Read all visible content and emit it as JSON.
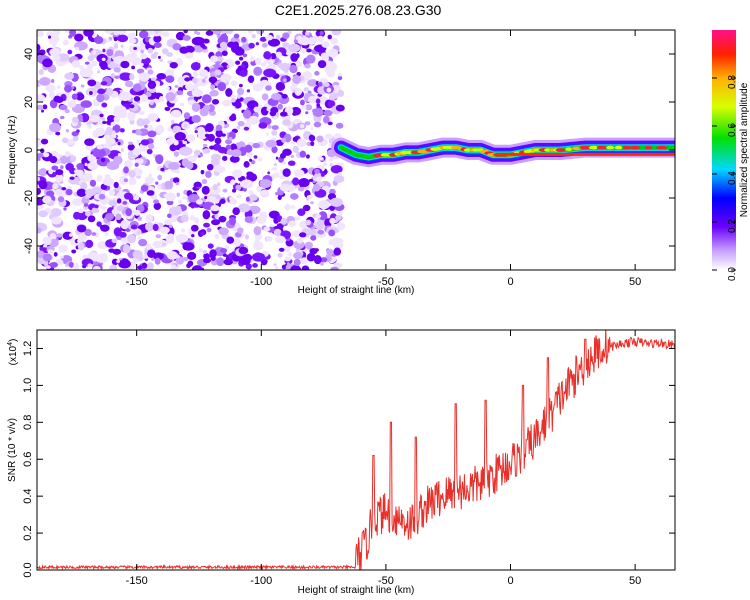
{
  "title": "C2E1.2025.276.08.23.G30",
  "chart_data": [
    {
      "type": "heatmap",
      "name": "spectrogram",
      "xlabel": "Height of straight line (km)",
      "ylabel": "Frequency (Hz)",
      "xlim": [
        -190,
        66
      ],
      "ylim": [
        -50,
        50
      ],
      "xticks": [
        -150,
        -100,
        -50,
        0,
        50
      ],
      "yticks": [
        -40,
        -20,
        0,
        20,
        40
      ],
      "noise_region_x": [
        -190,
        -68
      ],
      "signal_trace": {
        "x": [
          -68,
          -62,
          -57,
          -52,
          -47,
          -42,
          -37,
          -32,
          -27,
          -22,
          -17,
          -12,
          -7,
          0,
          5,
          10,
          15,
          20,
          30,
          40,
          50,
          66
        ],
        "freq": [
          1,
          -2,
          -3,
          -2,
          -2,
          -1,
          -1,
          0,
          1,
          1,
          0,
          0,
          -2,
          -2,
          -1,
          0,
          0,
          0,
          1,
          1,
          1,
          1
        ]
      },
      "colorbar": {
        "label": "Normalized spectral amplitude",
        "range": [
          0.0,
          1.0
        ],
        "ticks": [
          "0.0",
          "0.2",
          "0.4",
          "0.6",
          "0.8"
        ]
      }
    },
    {
      "type": "line",
      "name": "snr",
      "xlabel": "Height of straight line (km)",
      "ylabel": "SNR (10 * v/v)",
      "scale_label": "(x10",
      "scale_exponent": "4",
      "xlim": [
        -190,
        66
      ],
      "ylim": [
        0.0,
        1.3
      ],
      "xticks": [
        -150,
        -100,
        -50,
        0,
        50
      ],
      "yticks": [
        "0.0",
        "0.2",
        "0.4",
        "0.6",
        "0.8",
        "1.0",
        "1.2"
      ],
      "color": "#e8302a",
      "baseline_x_range": [
        -190,
        -62
      ],
      "baseline_mean": 0.015,
      "trend": {
        "x": [
          -62,
          -58,
          -55,
          -50,
          -45,
          -40,
          -35,
          -30,
          -25,
          -20,
          -15,
          -10,
          -5,
          0,
          5,
          10,
          15,
          20,
          25,
          30,
          35,
          40,
          45,
          50,
          55,
          60,
          66
        ],
        "y": [
          0.03,
          0.1,
          0.25,
          0.28,
          0.25,
          0.22,
          0.3,
          0.35,
          0.38,
          0.4,
          0.42,
          0.45,
          0.5,
          0.55,
          0.6,
          0.68,
          0.78,
          0.9,
          1.0,
          1.08,
          1.15,
          1.2,
          1.22,
          1.23,
          1.22,
          1.22,
          1.21
        ]
      },
      "peaks": [
        {
          "x": -55,
          "y": 0.62
        },
        {
          "x": -48,
          "y": 0.8
        },
        {
          "x": -38,
          "y": 0.72
        },
        {
          "x": -22,
          "y": 0.9
        },
        {
          "x": -10,
          "y": 0.92
        },
        {
          "x": 5,
          "y": 1.0
        },
        {
          "x": 15,
          "y": 1.15
        },
        {
          "x": 30,
          "y": 1.25
        }
      ]
    }
  ]
}
